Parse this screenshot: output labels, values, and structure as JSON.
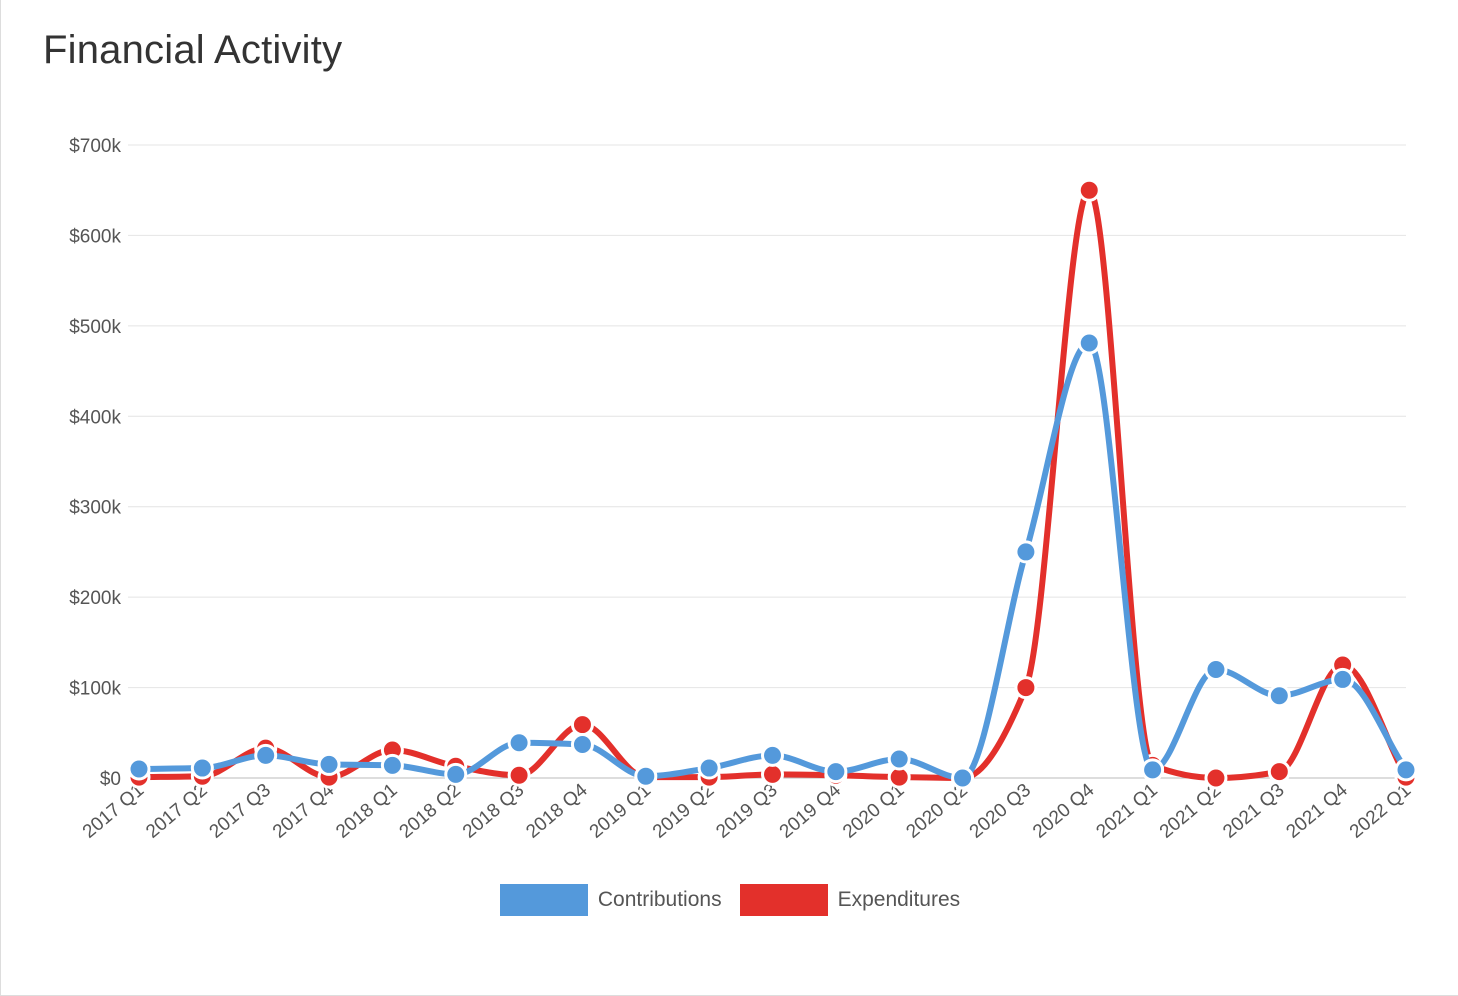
{
  "title": "Financial Activity",
  "colors": {
    "contributions": "#5499db",
    "expenditures": "#e3302b",
    "grid": "#e4e4e4",
    "axis": "#bbbbbb"
  },
  "chart_data": {
    "type": "line",
    "title": "Financial Activity",
    "curve": "smooth",
    "categories": [
      "2017 Q1",
      "2017 Q2",
      "2017 Q3",
      "2017 Q4",
      "2018 Q1",
      "2018 Q2",
      "2018 Q3",
      "2018 Q4",
      "2019 Q1",
      "2019 Q2",
      "2019 Q3",
      "2019 Q4",
      "2020 Q1",
      "2020 Q2",
      "2020 Q3",
      "2020 Q4",
      "2021 Q1",
      "2021 Q2",
      "2021 Q3",
      "2021 Q4",
      "2022 Q1"
    ],
    "series": [
      {
        "name": "Contributions",
        "color": "#5499db",
        "values": [
          10000,
          11000,
          25000,
          15000,
          14000,
          4000,
          39000,
          37000,
          2000,
          11000,
          25000,
          7000,
          21000,
          0,
          250000,
          481000,
          9000,
          120000,
          91000,
          109000,
          9000
        ]
      },
      {
        "name": "Expenditures",
        "color": "#e3302b",
        "values": [
          1000,
          2000,
          33000,
          1000,
          31000,
          13000,
          3000,
          59000,
          1000,
          1000,
          4000,
          3000,
          1000,
          0,
          100000,
          650000,
          14000,
          0,
          7000,
          125000,
          1000
        ]
      }
    ],
    "yticks": [
      "$0",
      "$100k",
      "$200k",
      "$300k",
      "$400k",
      "$500k",
      "$600k",
      "$700k"
    ],
    "ylim": [
      0,
      700000
    ],
    "grid": true,
    "legend": "bottom-center"
  }
}
